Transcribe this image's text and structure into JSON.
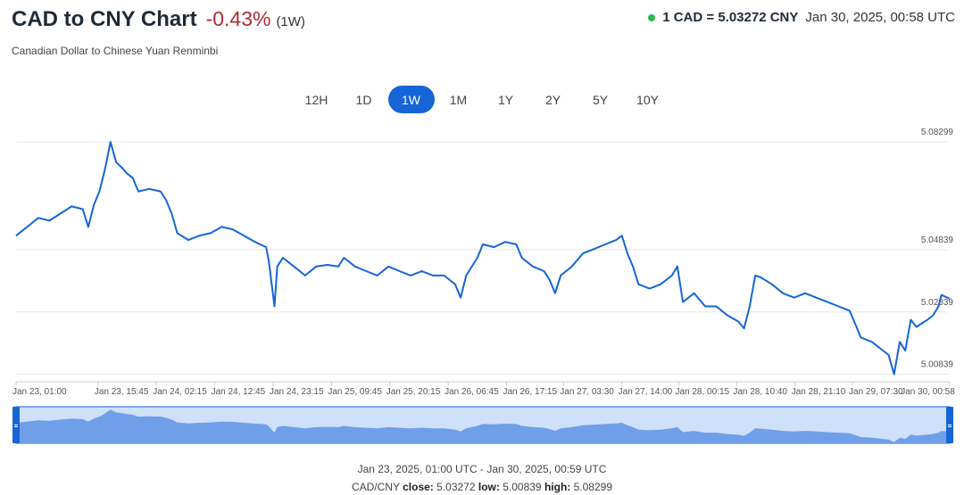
{
  "header": {
    "title": "CAD to CNY Chart",
    "change": "-0.43%",
    "period": "(1W)",
    "subtitle": "Canadian Dollar to Chinese Yuan Renminbi",
    "rate": "1 CAD = 5.03272 CNY",
    "timestamp": "Jan 30, 2025, 00:58 UTC"
  },
  "ranges": {
    "buttons": [
      "12H",
      "1D",
      "1W",
      "1M",
      "1Y",
      "2Y",
      "5Y",
      "10Y"
    ],
    "active": "1W"
  },
  "chart_data": {
    "type": "line",
    "color": "#1565d8",
    "x": [
      0,
      2,
      4,
      6,
      8,
      10,
      12,
      13,
      14,
      15,
      16,
      17,
      18,
      19,
      20,
      21,
      22,
      24,
      26,
      27,
      28,
      29,
      31,
      33,
      35,
      37,
      39,
      41,
      43,
      45,
      45.5,
      46.5,
      47,
      48,
      50,
      52,
      54,
      56,
      58,
      59,
      61,
      63,
      65,
      67,
      69,
      71,
      73,
      75,
      77,
      79,
      80,
      81,
      83,
      84,
      86,
      88,
      90,
      91,
      93,
      95,
      96,
      97,
      98,
      100,
      102,
      104,
      106,
      108,
      109,
      110,
      111,
      112,
      114,
      116,
      118,
      119,
      120,
      122,
      124,
      126,
      128,
      130,
      131,
      132,
      133,
      134,
      136,
      138,
      140,
      142,
      144,
      146,
      148,
      150,
      151,
      152,
      154,
      156,
      157,
      158,
      159,
      160,
      161,
      162,
      164,
      165,
      166,
      166.5,
      167.97
    ],
    "values": [
      5.0529,
      5.0557,
      5.0586,
      5.0577,
      5.06,
      5.0623,
      5.0614,
      5.0557,
      5.0628,
      5.0671,
      5.0742,
      5.083,
      5.0765,
      5.0748,
      5.0728,
      5.0714,
      5.0671,
      5.0679,
      5.0671,
      5.0643,
      5.06,
      5.0537,
      5.0515,
      5.0529,
      5.0537,
      5.0557,
      5.0549,
      5.0529,
      5.0509,
      5.0492,
      5.0444,
      5.0302,
      5.043,
      5.0458,
      5.043,
      5.0401,
      5.043,
      5.0435,
      5.043,
      5.0458,
      5.043,
      5.0415,
      5.0401,
      5.043,
      5.0415,
      5.0401,
      5.0415,
      5.0401,
      5.0401,
      5.0373,
      5.033,
      5.0401,
      5.0458,
      5.0501,
      5.0492,
      5.0509,
      5.0501,
      5.0458,
      5.043,
      5.0415,
      5.0387,
      5.0344,
      5.0401,
      5.043,
      5.0472,
      5.0486,
      5.0501,
      5.0515,
      5.0529,
      5.0472,
      5.043,
      5.0373,
      5.0359,
      5.0373,
      5.0401,
      5.043,
      5.0316,
      5.0344,
      5.0302,
      5.0302,
      5.0273,
      5.0253,
      5.0231,
      5.0302,
      5.0401,
      5.0395,
      5.0373,
      5.0344,
      5.033,
      5.0344,
      5.033,
      5.0316,
      5.0302,
      5.0288,
      5.0245,
      5.0202,
      5.0188,
      5.016,
      5.0146,
      5.0084,
      5.0188,
      5.016,
      5.0259,
      5.0236,
      5.0259,
      5.0273,
      5.0302,
      5.0339,
      5.0327
    ],
    "xlim": [
      0,
      168
    ],
    "xticks": [
      {
        "value": 0,
        "label": "Jan 23, 01:00"
      },
      {
        "value": 14.75,
        "label": "Jan 23, 15:45"
      },
      {
        "value": 25.25,
        "label": "Jan 24, 02:15"
      },
      {
        "value": 35.75,
        "label": "Jan 24, 12:45"
      },
      {
        "value": 46.25,
        "label": "Jan 24, 23:15"
      },
      {
        "value": 56.75,
        "label": "Jan 25, 09:45"
      },
      {
        "value": 67.25,
        "label": "Jan 25, 20:15"
      },
      {
        "value": 77.75,
        "label": "Jan 26, 06:45"
      },
      {
        "value": 88.25,
        "label": "Jan 26, 17:15"
      },
      {
        "value": 98.5,
        "label": "Jan 27, 03:30"
      },
      {
        "value": 109,
        "label": "Jan 27, 14:00"
      },
      {
        "value": 119.25,
        "label": "Jan 28, 00:15"
      },
      {
        "value": 129.67,
        "label": "Jan 28, 10:40"
      },
      {
        "value": 140.17,
        "label": "Jan 28, 21:10"
      },
      {
        "value": 150.5,
        "label": "Jan 29, 07:30"
      },
      {
        "value": 167.97,
        "label": "Jan 30, 00:58"
      }
    ],
    "ylim": [
      5.006,
      5.0856
    ],
    "yticks": [
      5.00839,
      5.02839,
      5.04839,
      5.08299
    ],
    "grid": true
  },
  "footer": {
    "range": "Jan 23, 2025, 01:00 UTC - Jan 30, 2025, 00:59 UTC",
    "pair": "CAD/CNY",
    "stats": [
      {
        "label": "close:",
        "value": "5.03272"
      },
      {
        "label": "low:",
        "value": "5.00839"
      },
      {
        "label": "high:",
        "value": "5.08299"
      }
    ]
  }
}
